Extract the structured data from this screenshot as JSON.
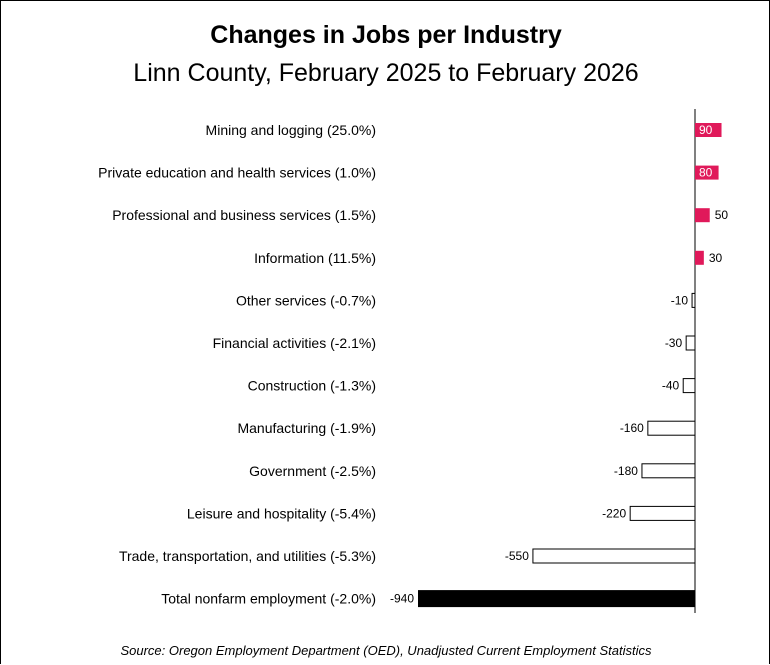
{
  "chart_data": {
    "type": "bar",
    "orientation": "horizontal",
    "title": "Changes in Jobs per Industry",
    "subtitle": "Linn County, February 2025 to February 2026",
    "source": "Source: Oregon Employment Department (OED), Unadjusted Current Employment Statistics",
    "categories": [
      "Mining and logging (25.0%)",
      "Private education and health services (1.0%)",
      "Professional and business services (1.5%)",
      "Information (11.5%)",
      "Other services (-0.7%)",
      "Financial activities (-2.1%)",
      "Construction (-1.3%)",
      "Manufacturing (-1.9%)",
      "Government (-2.5%)",
      "Leisure and hospitality (-5.4%)",
      "Trade, transportation, and utilities (-5.3%)",
      "Total nonfarm employment (-2.0%)"
    ],
    "values": [
      90,
      80,
      50,
      30,
      -10,
      -30,
      -40,
      -160,
      -180,
      -220,
      -550,
      -940
    ],
    "colors": {
      "positive": "#e0195a",
      "negative_fill": "#ffffff",
      "total": "#000000",
      "axis": "#000000"
    }
  }
}
